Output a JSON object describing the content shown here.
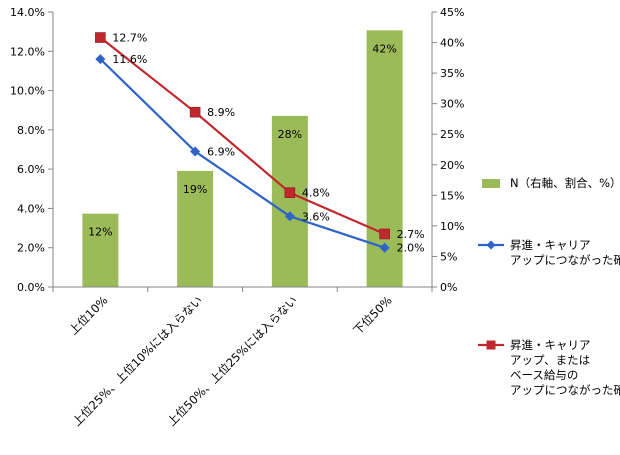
{
  "chart_data": {
    "type": "bar",
    "categories": [
      "上位10%",
      "上位25%、上位10%には入らない",
      "上位50%、上位25%には入らない",
      "下位50%"
    ],
    "series": [
      {
        "name": "N（右軸、割合、%）",
        "kind": "bar",
        "axis": "right",
        "values": [
          12,
          19,
          28,
          42
        ],
        "labels": [
          "12%",
          "19%",
          "28%",
          "42%"
        ],
        "color": "#9bbb59"
      },
      {
        "name": "昇進・キャリア\nアップにつながった確率",
        "kind": "line",
        "axis": "left",
        "marker": "diamond",
        "values": [
          11.6,
          6.9,
          3.6,
          2.0
        ],
        "labels": [
          "11.6%",
          "6.9%",
          "3.6%",
          "2.0%"
        ],
        "color": "#2e63c7"
      },
      {
        "name": "昇進・キャリア\nアップ、または\nベース給与の\nアップにつながった確率",
        "kind": "line",
        "axis": "left",
        "marker": "square",
        "values": [
          12.7,
          8.9,
          4.8,
          2.7
        ],
        "labels": [
          "12.7%",
          "8.9%",
          "4.8%",
          "2.7%"
        ],
        "color": "#c0282d"
      }
    ],
    "y_left": {
      "min": 0,
      "max": 14,
      "step": 2,
      "ticks": [
        "0.0%",
        "2.0%",
        "4.0%",
        "6.0%",
        "8.0%",
        "10.0%",
        "12.0%",
        "14.0%"
      ]
    },
    "y_right": {
      "min": 0,
      "max": 45,
      "step": 5,
      "ticks": [
        "0%",
        "5%",
        "10%",
        "15%",
        "20%",
        "25%",
        "30%",
        "35%",
        "40%",
        "45%"
      ]
    },
    "grid": false,
    "legend_position": "right"
  }
}
